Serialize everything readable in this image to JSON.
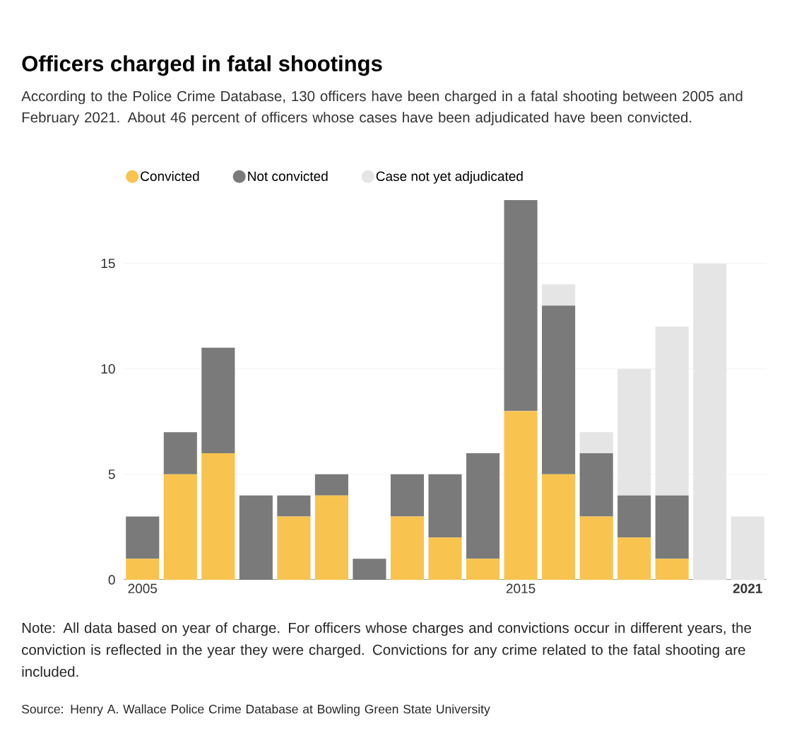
{
  "chart_data": {
    "type": "bar",
    "stacked": true,
    "title": "Officers charged in fatal shootings",
    "subtitle": "According to the Police Crime Database, 130 officers have been charged in a fatal shooting between 2005 and February 2021. About 46 percent of officers whose cases have been adjudicated have been convicted.",
    "categories": [
      "2005",
      null,
      null,
      null,
      null,
      null,
      null,
      null,
      null,
      null,
      "2015",
      null,
      null,
      null,
      null,
      null,
      "2021"
    ],
    "series": [
      {
        "name": "Convicted",
        "color": "#f8c44f",
        "values": [
          1,
          5,
          6,
          0,
          3,
          4,
          0,
          3,
          2,
          1,
          8,
          5,
          3,
          2,
          1,
          0,
          0
        ]
      },
      {
        "name": "Not convicted",
        "color": "#7a7a7a",
        "values": [
          2,
          2,
          5,
          4,
          1,
          1,
          1,
          2,
          3,
          5,
          10,
          8,
          3,
          2,
          3,
          0,
          0
        ]
      },
      {
        "name": "Case not yet adjudicated",
        "color": "#e5e5e5",
        "values": [
          0,
          0,
          0,
          0,
          0,
          0,
          0,
          0,
          0,
          0,
          0,
          1,
          1,
          6,
          8,
          15,
          3
        ]
      }
    ],
    "ylim": [
      0,
      18
    ],
    "yticks": [
      0,
      5,
      10,
      15
    ],
    "grid": "y",
    "legend": "top left",
    "annotations": [
      "Note: All data based on year of charge. For officers whose charges and convictions occur in different years, the conviction is reflected in the year they were charged. Convictions for any crime related to the fatal shooting are included.",
      "Source: Henry A. Wallace Police Crime Database at Bowling Green State University"
    ]
  }
}
